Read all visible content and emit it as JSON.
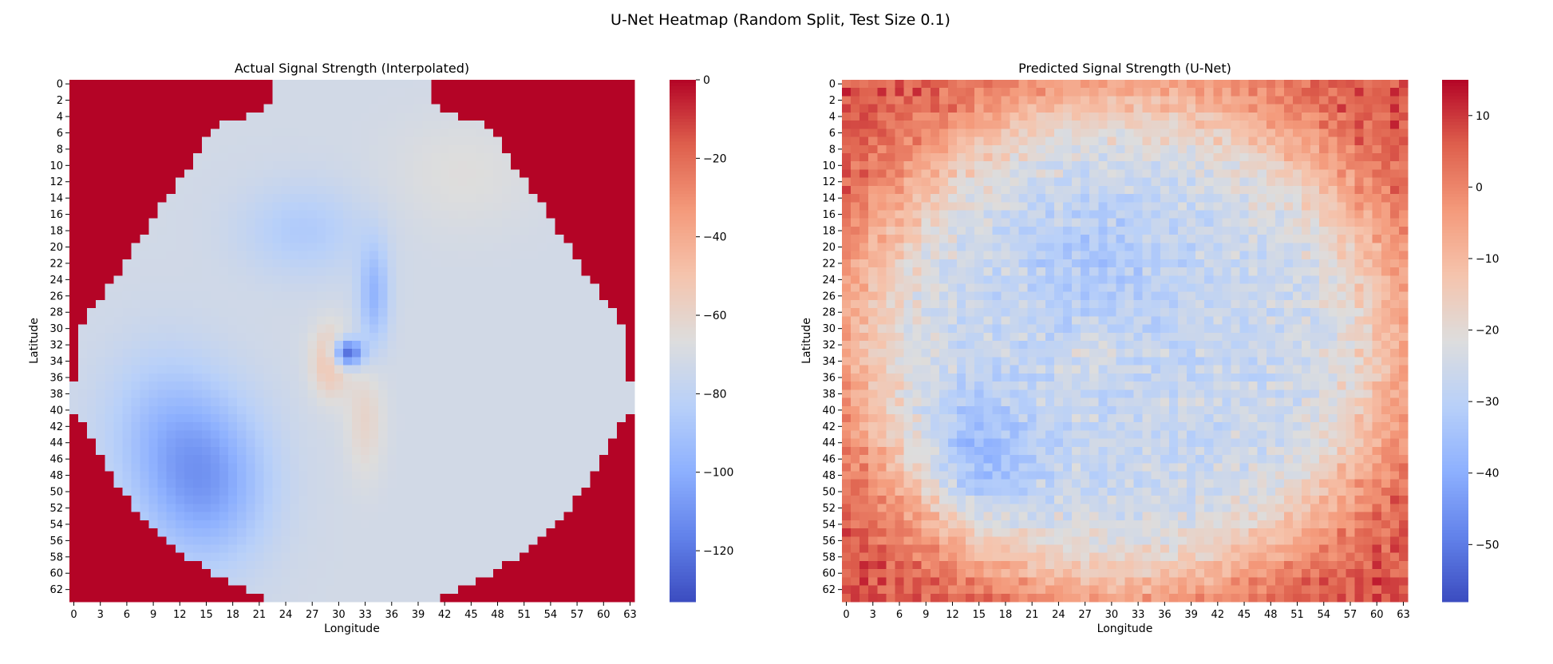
{
  "figure_title": "U-Net Heatmap (Random Split, Test Size 0.1)",
  "chart_data": [
    {
      "type": "heatmap",
      "title": "Actual Signal Strength (Interpolated)",
      "xlabel": "Longitude",
      "ylabel": "Latitude",
      "grid_size": [
        64,
        64
      ],
      "x_tick_labels": [
        "0",
        "3",
        "6",
        "9",
        "12",
        "15",
        "18",
        "21",
        "24",
        "27",
        "30",
        "33",
        "36",
        "39",
        "42",
        "45",
        "48",
        "51",
        "54",
        "57",
        "60",
        "63"
      ],
      "y_tick_labels": [
        "0",
        "2",
        "4",
        "6",
        "8",
        "10",
        "12",
        "14",
        "16",
        "18",
        "20",
        "22",
        "24",
        "26",
        "28",
        "30",
        "32",
        "34",
        "36",
        "38",
        "40",
        "42",
        "44",
        "46",
        "48",
        "50",
        "52",
        "54",
        "56",
        "58",
        "60",
        "62"
      ],
      "colormap": "coolwarm",
      "vmin": -133,
      "vmax": 0,
      "colorbar_ticks": [
        "0",
        "−20",
        "−40",
        "−60",
        "−80",
        "−100",
        "−120"
      ],
      "colorbar_tick_values": [
        0,
        -20,
        -40,
        -60,
        -80,
        -100,
        -120
      ],
      "background_value": 0,
      "base_value": -72,
      "region_half_widths": [
        23,
        23,
        23,
        22,
        20,
        17,
        16,
        15,
        15,
        14,
        14,
        13,
        12,
        12,
        11,
        10,
        10,
        9,
        9,
        8,
        7,
        7,
        6,
        6,
        5,
        4,
        4,
        3,
        2,
        2,
        1,
        1,
        1,
        1,
        1,
        1,
        1,
        0,
        0,
        0,
        0,
        1,
        2,
        2,
        3,
        3,
        4,
        4,
        5,
        5,
        6,
        7,
        7,
        8,
        9,
        10,
        11,
        12,
        13,
        15,
        16,
        18,
        20,
        22
      ],
      "region_center": 31.5,
      "features": [
        {
          "kind": "gaussian",
          "row": 49,
          "col": 15,
          "sigma_row": 7.0,
          "sigma_col": 5.0,
          "delta": -32
        },
        {
          "kind": "gaussian",
          "row": 42,
          "col": 10,
          "sigma_row": 7.0,
          "sigma_col": 5.0,
          "delta": -16
        },
        {
          "kind": "gaussian",
          "row": 18,
          "col": 26,
          "sigma_row": 4.0,
          "sigma_col": 5.0,
          "delta": -14
        },
        {
          "kind": "gaussian",
          "row": 33,
          "col": 31,
          "sigma_row": 1.2,
          "sigma_col": 1.2,
          "delta": -58
        },
        {
          "kind": "gaussian",
          "row": 26,
          "col": 34,
          "sigma_row": 4.5,
          "sigma_col": 1.2,
          "delta": -25
        },
        {
          "kind": "gaussian",
          "row": 34,
          "col": 29,
          "sigma_row": 3.0,
          "sigma_col": 1.4,
          "delta": 24
        },
        {
          "kind": "gaussian",
          "row": 41,
          "col": 33,
          "sigma_row": 5.0,
          "sigma_col": 1.5,
          "delta": 12
        },
        {
          "kind": "gaussian",
          "row": 11,
          "col": 44,
          "sigma_row": 5.0,
          "sigma_col": 6.0,
          "delta": 6
        }
      ]
    },
    {
      "type": "heatmap",
      "title": "Predicted Signal Strength (U-Net)",
      "xlabel": "Longitude",
      "ylabel": "Latitude",
      "grid_size": [
        64,
        64
      ],
      "x_tick_labels": [
        "0",
        "3",
        "6",
        "9",
        "12",
        "15",
        "18",
        "21",
        "24",
        "27",
        "30",
        "33",
        "36",
        "39",
        "42",
        "45",
        "48",
        "51",
        "54",
        "57",
        "60",
        "63"
      ],
      "y_tick_labels": [
        "0",
        "2",
        "4",
        "6",
        "8",
        "10",
        "12",
        "14",
        "16",
        "18",
        "20",
        "22",
        "24",
        "26",
        "28",
        "30",
        "32",
        "34",
        "36",
        "38",
        "40",
        "42",
        "44",
        "46",
        "48",
        "50",
        "52",
        "54",
        "56",
        "58",
        "60",
        "62"
      ],
      "colormap": "coolwarm",
      "vmin": -58,
      "vmax": 15,
      "colorbar_ticks": [
        "10",
        "0",
        "−10",
        "−20",
        "−30",
        "−40",
        "−50"
      ],
      "colorbar_tick_values": [
        10,
        0,
        -10,
        -20,
        -30,
        -40,
        -50
      ],
      "center_row": 31.5,
      "center_col": 31.5,
      "inner_value": -28,
      "outer_value": 7,
      "noise_amplitude": 7,
      "features": [
        {
          "kind": "gaussian",
          "row": 47,
          "col": 14,
          "sigma_row": 6.0,
          "sigma_col": 5.0,
          "delta": -14
        },
        {
          "kind": "gaussian",
          "row": 22,
          "col": 28,
          "sigma_row": 6.0,
          "sigma_col": 6.0,
          "delta": -6
        },
        {
          "kind": "gaussian",
          "row": 33,
          "col": 28,
          "sigma_row": 2.0,
          "sigma_col": 2.0,
          "delta": 6
        }
      ]
    }
  ]
}
